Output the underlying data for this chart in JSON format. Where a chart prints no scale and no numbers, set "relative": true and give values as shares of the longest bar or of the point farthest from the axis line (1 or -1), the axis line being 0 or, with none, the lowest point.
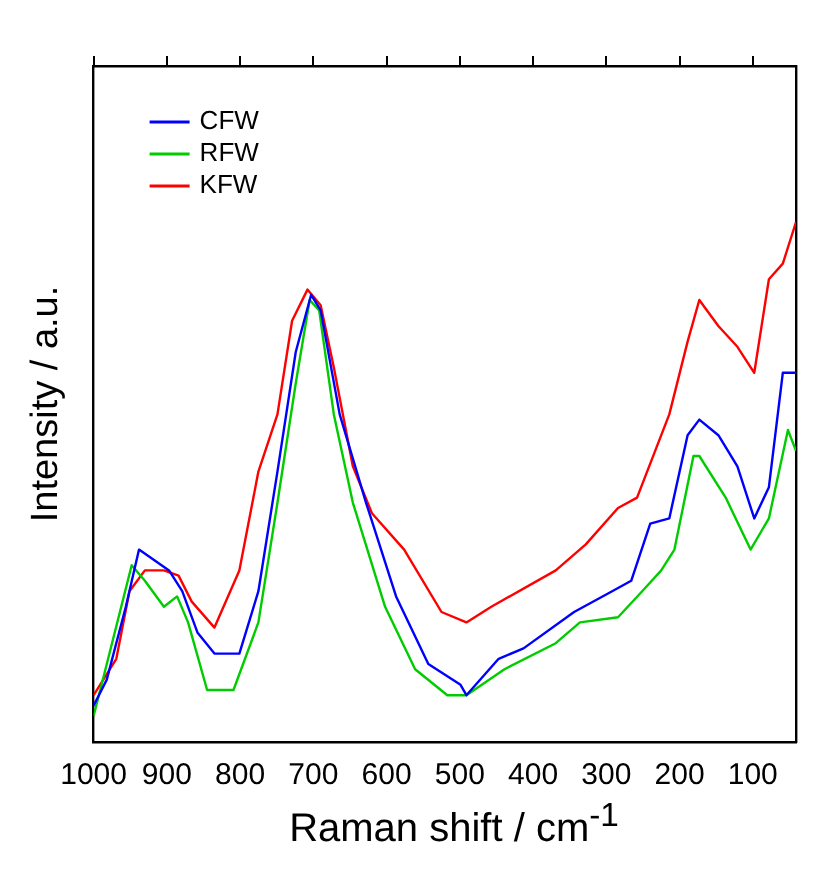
{
  "chart_data": {
    "type": "line",
    "xlabel": "Raman shift / cm$^{-1}$",
    "ylabel": "Intensity / a.u.",
    "relative": true,
    "xlim": [
      1000,
      41
    ],
    "xticks": [
      1000,
      900,
      800,
      700,
      600,
      500,
      400,
      300,
      200,
      100
    ],
    "grid": false,
    "legend": "top left",
    "marker": "none",
    "line_style": "solid",
    "series": [
      {
        "name": "CFW",
        "color": "#0000ff",
        "x": [
          1000,
          982,
          956,
          938,
          897,
          879,
          858,
          835,
          801,
          775,
          749,
          724,
          703,
          690,
          664,
          628,
          587,
          543,
          499,
          491,
          447,
          413,
          344,
          292,
          266,
          240,
          214,
          189,
          173,
          147,
          121,
          98,
          78,
          59,
          41
        ],
        "values": [
          0.07,
          0.12,
          0.26,
          0.37,
          0.33,
          0.29,
          0.21,
          0.17,
          0.17,
          0.29,
          0.52,
          0.75,
          0.86,
          0.83,
          0.63,
          0.46,
          0.28,
          0.15,
          0.11,
          0.09,
          0.16,
          0.18,
          0.25,
          0.29,
          0.31,
          0.42,
          0.43,
          0.59,
          0.62,
          0.59,
          0.53,
          0.43,
          0.49,
          0.71,
          0.71
        ]
      },
      {
        "name": "RFW",
        "color": "#00cc00",
        "x": [
          1000,
          982,
          948,
          930,
          904,
          886,
          871,
          845,
          809,
          775,
          749,
          724,
          705,
          692,
          672,
          646,
          602,
          561,
          517,
          491,
          439,
          369,
          336,
          284,
          251,
          225,
          207,
          181,
          173,
          137,
          103,
          78,
          52,
          41
        ],
        "values": [
          0.05,
          0.15,
          0.34,
          0.31,
          0.26,
          0.28,
          0.23,
          0.1,
          0.1,
          0.23,
          0.46,
          0.69,
          0.85,
          0.83,
          0.63,
          0.46,
          0.26,
          0.14,
          0.09,
          0.09,
          0.14,
          0.19,
          0.23,
          0.24,
          0.29,
          0.33,
          0.37,
          0.55,
          0.55,
          0.47,
          0.37,
          0.43,
          0.6,
          0.56
        ]
      },
      {
        "name": "KFW",
        "color": "#ff0000",
        "x": [
          1000,
          969,
          951,
          930,
          904,
          884,
          866,
          835,
          801,
          775,
          749,
          729,
          708,
          690,
          672,
          646,
          620,
          576,
          525,
          491,
          457,
          369,
          328,
          284,
          258,
          214,
          189,
          173,
          147,
          121,
          98,
          78,
          59,
          41
        ],
        "values": [
          0.09,
          0.16,
          0.29,
          0.33,
          0.33,
          0.32,
          0.27,
          0.22,
          0.33,
          0.52,
          0.63,
          0.81,
          0.87,
          0.84,
          0.72,
          0.53,
          0.44,
          0.37,
          0.25,
          0.23,
          0.26,
          0.33,
          0.38,
          0.45,
          0.47,
          0.63,
          0.77,
          0.85,
          0.8,
          0.76,
          0.71,
          0.89,
          0.92,
          1.0
        ]
      }
    ]
  }
}
